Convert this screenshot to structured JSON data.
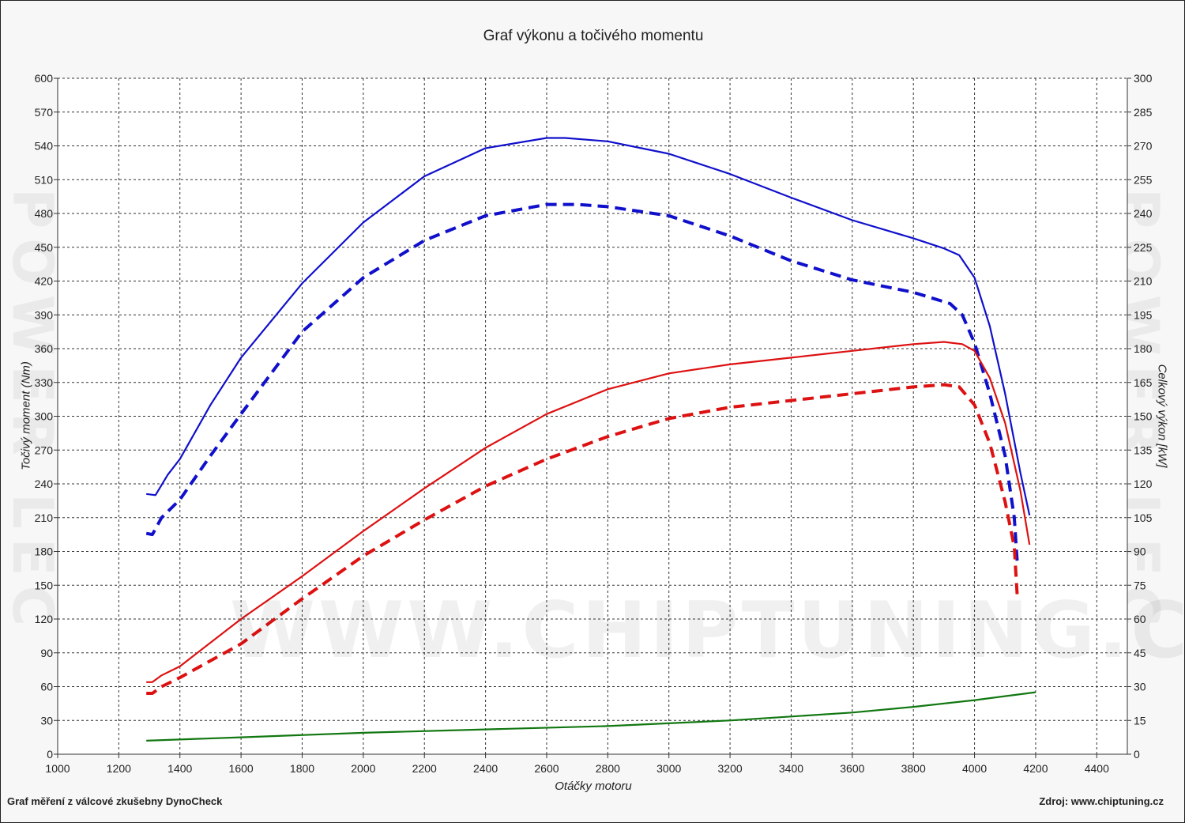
{
  "watermark": "WWW.CHIPTUNING.CZ",
  "side_watermark": "POWER LEC",
  "footer": {
    "left": "Graf měření z válcové zkušebny DynoCheck",
    "right": "Zdroj: www.chiptuning.cz"
  },
  "colors": {
    "torque": "#1010cc",
    "power": "#dd1111",
    "loss": "#117711"
  },
  "chart_data": {
    "type": "line",
    "title": "Graf výkonu a točivého momentu",
    "xlabel": "Otáčky motoru",
    "ylabel": "Točivý moment (Nm)",
    "ylabel_right": "Celkový výkon [kW]",
    "xlim": [
      1000,
      4500
    ],
    "ylim": [
      0,
      600
    ],
    "ylim_right": [
      0,
      300
    ],
    "grid": true,
    "x_ticks": [
      1000,
      1200,
      1400,
      1600,
      1800,
      2000,
      2200,
      2400,
      2600,
      2800,
      3000,
      3200,
      3400,
      3600,
      3800,
      4000,
      4200,
      4400
    ],
    "y_ticks": [
      0,
      30,
      60,
      90,
      120,
      150,
      180,
      210,
      240,
      270,
      300,
      330,
      360,
      390,
      420,
      450,
      480,
      510,
      540,
      570,
      600
    ],
    "y_ticks_right": [
      0,
      15,
      30,
      45,
      60,
      75,
      90,
      105,
      120,
      135,
      150,
      165,
      180,
      195,
      210,
      225,
      240,
      255,
      270,
      285,
      300
    ],
    "series": [
      {
        "axis": "left",
        "style": "solid",
        "color": "#1010cc",
        "x": [
          1290,
          1320,
          1360,
          1400,
          1500,
          1600,
          1800,
          2000,
          2200,
          2400,
          2600,
          2660,
          2800,
          3000,
          3200,
          3400,
          3600,
          3800,
          3900,
          3950,
          4000,
          4050,
          4100,
          4150,
          4180
        ],
        "y": [
          231,
          230,
          248,
          262,
          310,
          352,
          418,
          472,
          513,
          538,
          547,
          547,
          544,
          533,
          515,
          494,
          474,
          458,
          449,
          443,
          423,
          380,
          320,
          250,
          212
        ]
      },
      {
        "axis": "left",
        "style": "dashed",
        "color": "#1010cc",
        "x": [
          1290,
          1310,
          1340,
          1400,
          1500,
          1600,
          1800,
          2000,
          2200,
          2400,
          2600,
          2700,
          2800,
          3000,
          3200,
          3400,
          3600,
          3800,
          3920,
          3960,
          4000,
          4050,
          4100,
          4130,
          4140
        ],
        "y": [
          196,
          195,
          210,
          226,
          265,
          302,
          375,
          423,
          456,
          478,
          488,
          488,
          486,
          478,
          460,
          438,
          421,
          410,
          400,
          390,
          365,
          320,
          265,
          210,
          170
        ]
      },
      {
        "axis": "right",
        "style": "solid",
        "color": "#dd1111",
        "x": [
          1290,
          1310,
          1340,
          1400,
          1600,
          1800,
          2000,
          2200,
          2400,
          2600,
          2800,
          3000,
          3200,
          3400,
          3600,
          3800,
          3900,
          3960,
          4000,
          4050,
          4100,
          4150,
          4180
        ],
        "y": [
          32,
          32,
          35,
          39,
          60,
          79,
          99,
          118,
          136,
          151,
          162,
          169,
          173,
          176,
          179,
          182,
          183,
          182,
          179,
          167,
          147,
          117,
          93
        ]
      },
      {
        "axis": "right",
        "style": "dashed",
        "color": "#dd1111",
        "x": [
          1290,
          1310,
          1340,
          1400,
          1600,
          1800,
          2000,
          2200,
          2400,
          2600,
          2800,
          3000,
          3200,
          3400,
          3600,
          3800,
          3900,
          3950,
          4000,
          4050,
          4100,
          4130,
          4140
        ],
        "y": [
          27,
          27,
          30,
          34,
          49,
          69,
          88,
          104,
          119,
          131,
          141,
          149,
          154,
          157,
          160,
          163,
          164,
          163,
          155,
          138,
          112,
          92,
          70
        ]
      },
      {
        "axis": "left",
        "style": "solid",
        "color": "#117711",
        "x": [
          1290,
          1600,
          2000,
          2400,
          2800,
          3200,
          3600,
          3800,
          4000,
          4200
        ],
        "y": [
          12,
          15,
          19,
          22,
          25,
          30,
          37,
          42,
          48,
          55
        ]
      }
    ]
  }
}
